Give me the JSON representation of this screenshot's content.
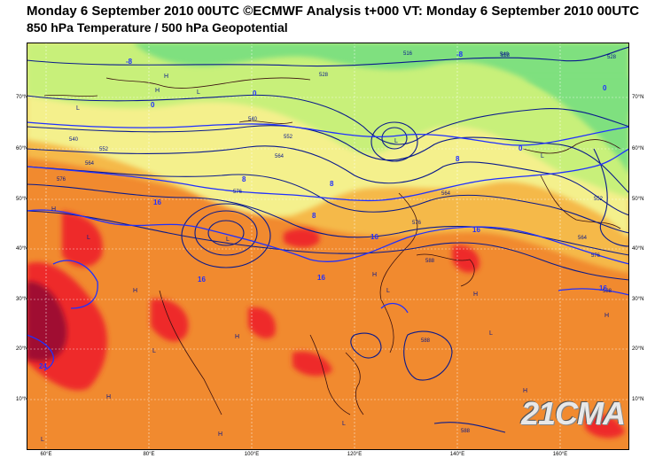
{
  "header": {
    "title": "Monday 6 September 2010 00UTC ©ECMWF Analysis t+000 VT: Monday 6 September 2010 00UTC",
    "subtitle": "850 hPa Temperature / 500 hPa Geopotential"
  },
  "axes": {
    "lon_labels": [
      "60°E",
      "80°E",
      "100°E",
      "120°E",
      "140°E",
      "160°E"
    ],
    "lat_labels": [
      "70°N",
      "60°N",
      "50°N",
      "40°N",
      "30°N",
      "20°N",
      "10°N"
    ]
  },
  "contour_labels": {
    "geopotential": [
      "528",
      "516",
      "528",
      "540",
      "552",
      "564",
      "576",
      "540",
      "552",
      "564",
      "576",
      "564",
      "576",
      "588",
      "588",
      "588",
      "576",
      "564",
      "552",
      "540",
      "528",
      "588"
    ],
    "temperature": [
      "-8",
      "-8",
      "0",
      "0",
      "0",
      "0",
      "8",
      "8",
      "8",
      "8",
      "16",
      "16",
      "16",
      "16",
      "16",
      "16",
      "24"
    ]
  },
  "pressure_centers": [
    "H",
    "L",
    "H",
    "L",
    "L",
    "L",
    "H",
    "L",
    "H",
    "H",
    "H",
    "L",
    "H",
    "H",
    "H",
    "L",
    "L",
    "H",
    "H",
    "L",
    "L",
    "L"
  ],
  "watermark": "21CMA",
  "colors": {
    "cold": "#7fe07f",
    "cool_yellow_green": "#c8f07a",
    "mild_yellow": "#f4f08c",
    "warm_light_orange": "#f5b94a",
    "warm_orange": "#f18a2f",
    "hot_red": "#ee2a2a",
    "hottest_dark_red": "#a01030",
    "geopotential_line": "#0a1a8c",
    "temperature_line": "#2030ff",
    "coastline": "#3a1010"
  }
}
